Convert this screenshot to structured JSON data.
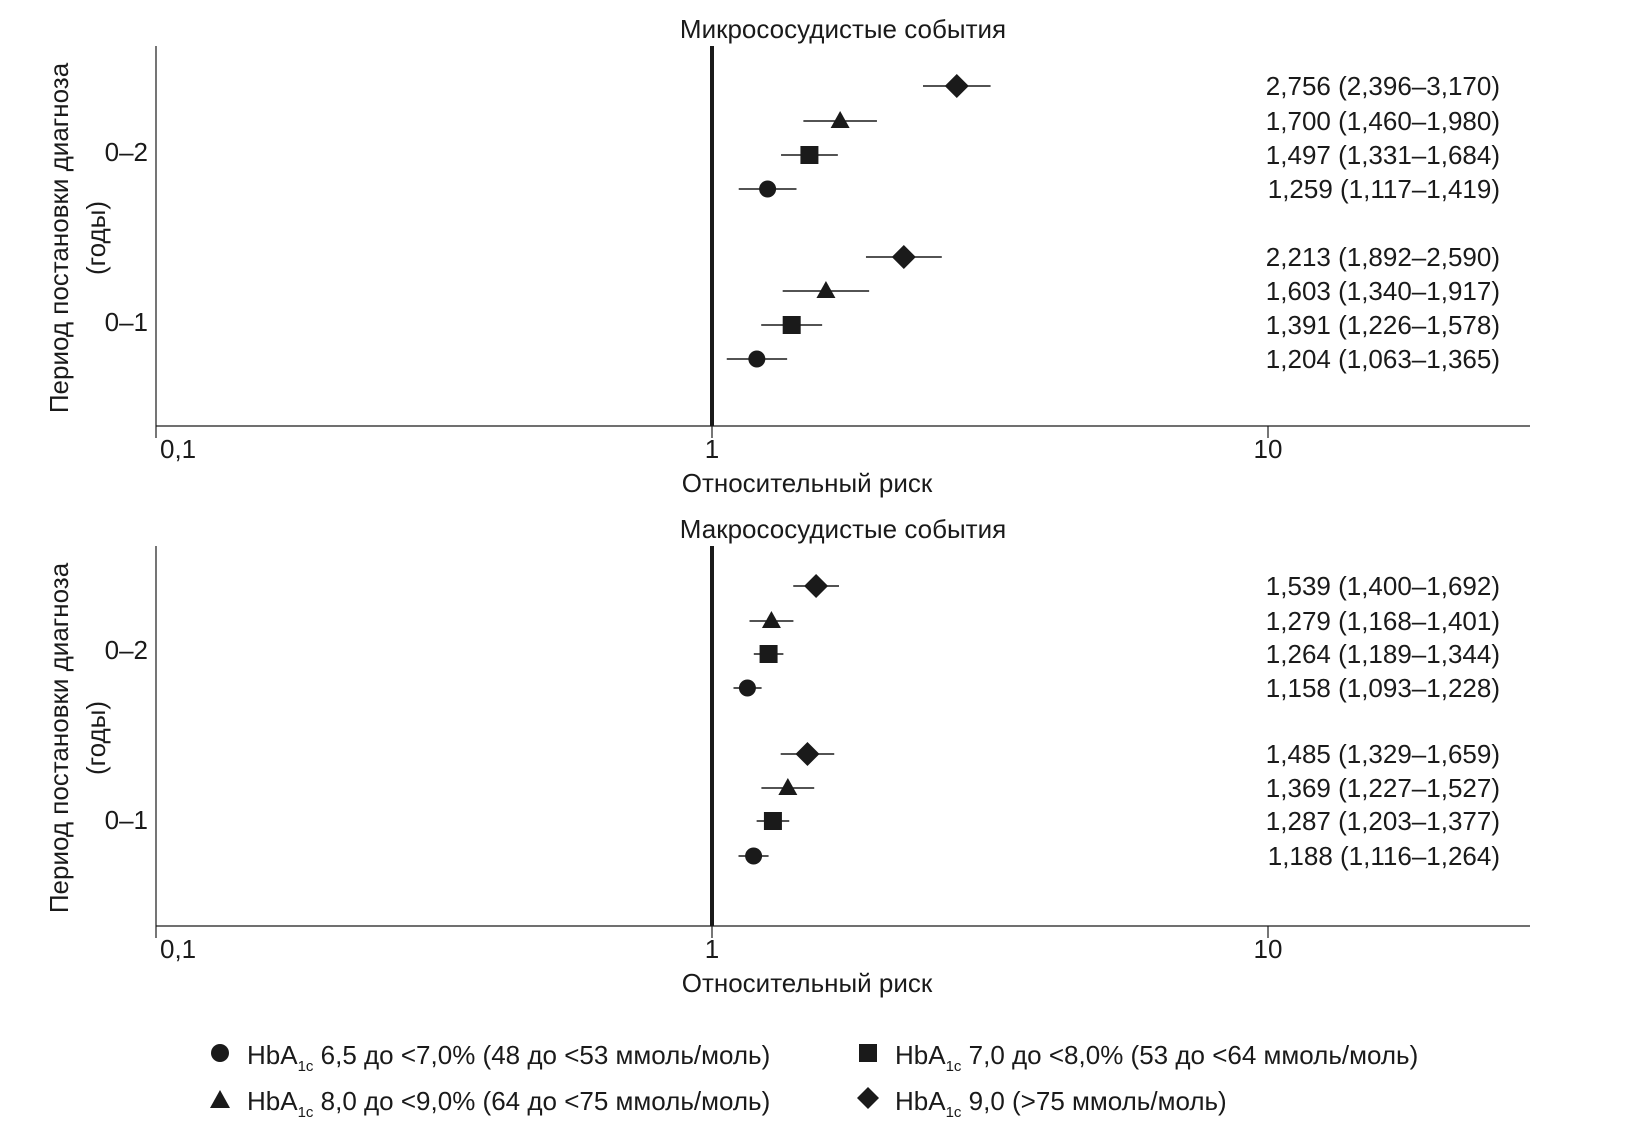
{
  "chart_data": [
    {
      "type": "forest",
      "title": "Микрососудистые события",
      "xlabel": "Относительный риск",
      "ylabel": "Период постановки диагноза (годы)",
      "ylabel_lines": [
        "Период постановки диагноза",
        "(годы)"
      ],
      "x_scale": "log",
      "xlim": [
        0.1,
        30
      ],
      "xticks": [
        0.1,
        1,
        10
      ],
      "xtick_labels": [
        "0,1",
        "1",
        "10"
      ],
      "reference_line": 1,
      "groups": [
        {
          "label": "0–2",
          "rows": [
            {
              "series": "HbA1c 9,0",
              "marker": "diamond",
              "value": 2.756,
              "low": 2.396,
              "high": 3.17,
              "text": "2,756 (2,396–3,170)"
            },
            {
              "series": "HbA1c 8,0 до <9,0%",
              "marker": "triangle",
              "value": 1.7,
              "low": 1.46,
              "high": 1.98,
              "text": "1,700 (1,460–1,980)"
            },
            {
              "series": "HbA1c 7,0 до <8,0%",
              "marker": "square",
              "value": 1.497,
              "low": 1.331,
              "high": 1.684,
              "text": "1,497 (1,331–1,684)"
            },
            {
              "series": "HbA1c 6,5 до <7,0%",
              "marker": "circle",
              "value": 1.259,
              "low": 1.117,
              "high": 1.419,
              "text": "1,259 (1,117–1,419)"
            }
          ]
        },
        {
          "label": "0–1",
          "rows": [
            {
              "series": "HbA1c 9,0",
              "marker": "diamond",
              "value": 2.213,
              "low": 1.892,
              "high": 2.59,
              "text": "2,213 (1,892–2,590)"
            },
            {
              "series": "HbA1c 8,0 до <9,0%",
              "marker": "triangle",
              "value": 1.603,
              "low": 1.34,
              "high": 1.917,
              "text": "1,603 (1,340–1,917)"
            },
            {
              "series": "HbA1c 7,0 до <8,0%",
              "marker": "square",
              "value": 1.391,
              "low": 1.226,
              "high": 1.578,
              "text": "1,391 (1,226–1,578)"
            },
            {
              "series": "HbA1c 6,5 до <7,0%",
              "marker": "circle",
              "value": 1.204,
              "low": 1.063,
              "high": 1.365,
              "text": "1,204 (1,063–1,365)"
            }
          ]
        }
      ]
    },
    {
      "type": "forest",
      "title": "Макрососудистые события",
      "xlabel": "Относительный риск",
      "ylabel": "Период постановки диагноза (годы)",
      "ylabel_lines": [
        "Период постановки диагноза",
        "(годы)"
      ],
      "x_scale": "log",
      "xlim": [
        0.1,
        30
      ],
      "xticks": [
        0.1,
        1,
        10
      ],
      "xtick_labels": [
        "0,1",
        "1",
        "10"
      ],
      "reference_line": 1,
      "groups": [
        {
          "label": "0–2",
          "rows": [
            {
              "series": "HbA1c 9,0",
              "marker": "diamond",
              "value": 1.539,
              "low": 1.4,
              "high": 1.692,
              "text": "1,539 (1,400–1,692)"
            },
            {
              "series": "HbA1c 8,0 до <9,0%",
              "marker": "triangle",
              "value": 1.279,
              "low": 1.168,
              "high": 1.401,
              "text": "1,279 (1,168–1,401)"
            },
            {
              "series": "HbA1c 7,0 до <8,0%",
              "marker": "square",
              "value": 1.264,
              "low": 1.189,
              "high": 1.344,
              "text": "1,264 (1,189–1,344)"
            },
            {
              "series": "HbA1c 6,5 до <7,0%",
              "marker": "circle",
              "value": 1.158,
              "low": 1.093,
              "high": 1.228,
              "text": "1,158 (1,093–1,228)"
            }
          ]
        },
        {
          "label": "0–1",
          "rows": [
            {
              "series": "HbA1c 9,0",
              "marker": "diamond",
              "value": 1.485,
              "low": 1.329,
              "high": 1.659,
              "text": "1,485 (1,329–1,659)"
            },
            {
              "series": "HbA1c 8,0 до <9,0%",
              "marker": "triangle",
              "value": 1.369,
              "low": 1.227,
              "high": 1.527,
              "text": "1,369 (1,227–1,527)"
            },
            {
              "series": "HbA1c 7,0 до <8,0%",
              "marker": "square",
              "value": 1.287,
              "low": 1.203,
              "high": 1.377,
              "text": "1,287 (1,203–1,377)"
            },
            {
              "series": "HbA1c 6,5 до <7,0%",
              "marker": "circle",
              "value": 1.188,
              "low": 1.116,
              "high": 1.264,
              "text": "1,188 (1,116–1,264)"
            }
          ]
        }
      ]
    }
  ],
  "legend": {
    "placement": "bottom",
    "items": [
      {
        "marker": "circle",
        "prefix": "HbA",
        "subscript": "1c",
        "text": " 6,5 до <7,0% (48 до <53 ммоль/моль)"
      },
      {
        "marker": "square",
        "prefix": "HbA",
        "subscript": "1c",
        "text": " 7,0 до <8,0% (53 до <64 ммоль/моль)"
      },
      {
        "marker": "triangle",
        "prefix": "HbA",
        "subscript": "1c",
        "text": " 8,0 до <9,0% (64 до <75 ммоль/моль)"
      },
      {
        "marker": "diamond",
        "prefix": "HbA",
        "subscript": "1c",
        "text": " 9,0 (>75 ммоль/моль)"
      }
    ]
  },
  "colors": {
    "ink": "#1a1a1a"
  }
}
